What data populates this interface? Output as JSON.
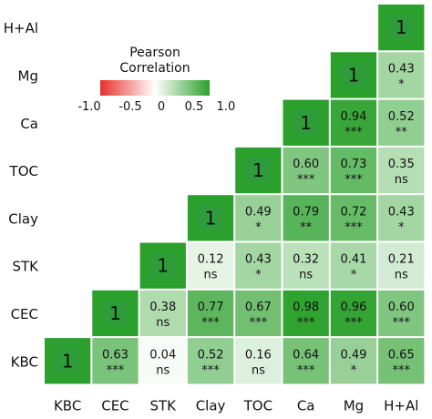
{
  "chart_data": {
    "type": "heatmap",
    "variables": [
      "KBC",
      "CEC",
      "STK",
      "Clay",
      "TOC",
      "Ca",
      "Mg",
      "H+Al"
    ],
    "x_tick_labels": [
      "KBC",
      "CEC",
      "STK",
      "Clay",
      "TOC",
      "Ca",
      "Mg",
      "H+Al"
    ],
    "y_tick_labels_top_to_bottom": [
      "H+Al",
      "Mg",
      "Ca",
      "TOC",
      "Clay",
      "STK",
      "CEC",
      "KBC"
    ],
    "lower_triangle_shown": false,
    "diagonal_label": "1",
    "cells": [
      {
        "x": "KBC",
        "y": "KBC",
        "r": 1.0,
        "label": "1",
        "sig": ""
      },
      {
        "x": "CEC",
        "y": "KBC",
        "r": 0.63,
        "label": "0.63",
        "sig": "***"
      },
      {
        "x": "STK",
        "y": "KBC",
        "r": 0.04,
        "label": "0.04",
        "sig": "ns"
      },
      {
        "x": "Clay",
        "y": "KBC",
        "r": 0.52,
        "label": "0.52",
        "sig": "***"
      },
      {
        "x": "TOC",
        "y": "KBC",
        "r": 0.16,
        "label": "0.16",
        "sig": "ns"
      },
      {
        "x": "Ca",
        "y": "KBC",
        "r": 0.64,
        "label": "0.64",
        "sig": "***"
      },
      {
        "x": "Mg",
        "y": "KBC",
        "r": 0.49,
        "label": "0.49",
        "sig": "*"
      },
      {
        "x": "H+Al",
        "y": "KBC",
        "r": 0.65,
        "label": "0.65",
        "sig": "***"
      },
      {
        "x": "CEC",
        "y": "CEC",
        "r": 1.0,
        "label": "1",
        "sig": ""
      },
      {
        "x": "STK",
        "y": "CEC",
        "r": 0.38,
        "label": "0.38",
        "sig": "ns"
      },
      {
        "x": "Clay",
        "y": "CEC",
        "r": 0.77,
        "label": "0.77",
        "sig": "***"
      },
      {
        "x": "TOC",
        "y": "CEC",
        "r": 0.67,
        "label": "0.67",
        "sig": "***"
      },
      {
        "x": "Ca",
        "y": "CEC",
        "r": 0.98,
        "label": "0.98",
        "sig": "***"
      },
      {
        "x": "Mg",
        "y": "CEC",
        "r": 0.96,
        "label": "0.96",
        "sig": "***"
      },
      {
        "x": "H+Al",
        "y": "CEC",
        "r": 0.6,
        "label": "0.60",
        "sig": "***"
      },
      {
        "x": "STK",
        "y": "STK",
        "r": 1.0,
        "label": "1",
        "sig": ""
      },
      {
        "x": "Clay",
        "y": "STK",
        "r": 0.12,
        "label": "0.12",
        "sig": "ns"
      },
      {
        "x": "TOC",
        "y": "STK",
        "r": 0.43,
        "label": "0.43",
        "sig": "*"
      },
      {
        "x": "Ca",
        "y": "STK",
        "r": 0.32,
        "label": "0.32",
        "sig": "ns"
      },
      {
        "x": "Mg",
        "y": "STK",
        "r": 0.41,
        "label": "0.41",
        "sig": "*"
      },
      {
        "x": "H+Al",
        "y": "STK",
        "r": 0.21,
        "label": "0.21",
        "sig": "ns"
      },
      {
        "x": "Clay",
        "y": "Clay",
        "r": 1.0,
        "label": "1",
        "sig": ""
      },
      {
        "x": "TOC",
        "y": "Clay",
        "r": 0.49,
        "label": "0.49",
        "sig": "*"
      },
      {
        "x": "Ca",
        "y": "Clay",
        "r": 0.79,
        "label": "0.79",
        "sig": "**"
      },
      {
        "x": "Mg",
        "y": "Clay",
        "r": 0.72,
        "label": "0.72",
        "sig": "***"
      },
      {
        "x": "H+Al",
        "y": "Clay",
        "r": 0.43,
        "label": "0.43",
        "sig": "*"
      },
      {
        "x": "TOC",
        "y": "TOC",
        "r": 1.0,
        "label": "1",
        "sig": ""
      },
      {
        "x": "Ca",
        "y": "TOC",
        "r": 0.6,
        "label": "0.60",
        "sig": "***"
      },
      {
        "x": "Mg",
        "y": "TOC",
        "r": 0.73,
        "label": "0.73",
        "sig": "***"
      },
      {
        "x": "H+Al",
        "y": "TOC",
        "r": 0.35,
        "label": "0.35",
        "sig": "ns"
      },
      {
        "x": "Ca",
        "y": "Ca",
        "r": 1.0,
        "label": "1",
        "sig": ""
      },
      {
        "x": "Mg",
        "y": "Ca",
        "r": 0.94,
        "label": "0.94",
        "sig": "***"
      },
      {
        "x": "H+Al",
        "y": "Ca",
        "r": 0.52,
        "label": "0.52",
        "sig": "**"
      },
      {
        "x": "Mg",
        "y": "Mg",
        "r": 1.0,
        "label": "1",
        "sig": ""
      },
      {
        "x": "H+Al",
        "y": "Mg",
        "r": 0.43,
        "label": "0.43",
        "sig": "*"
      },
      {
        "x": "H+Al",
        "y": "H+Al",
        "r": 1.0,
        "label": "1",
        "sig": ""
      }
    ],
    "legend": {
      "title": "Pearson\nCorrelation",
      "range": [
        -1.0,
        1.0
      ],
      "ticks": [
        {
          "value": -1.0,
          "label": "-1.0"
        },
        {
          "value": -0.5,
          "label": "-0.5"
        },
        {
          "value": 0,
          "label": "0"
        },
        {
          "value": 0.5,
          "label": "0.5"
        },
        {
          "value": 1.0,
          "label": "1.0"
        }
      ],
      "placement": "top-left"
    },
    "colors": {
      "positive": "#2ca02c",
      "neutral": "#ffffff",
      "negative": "#e8302b",
      "diagonal_inner": "#2f9c3a"
    },
    "grid": false
  }
}
